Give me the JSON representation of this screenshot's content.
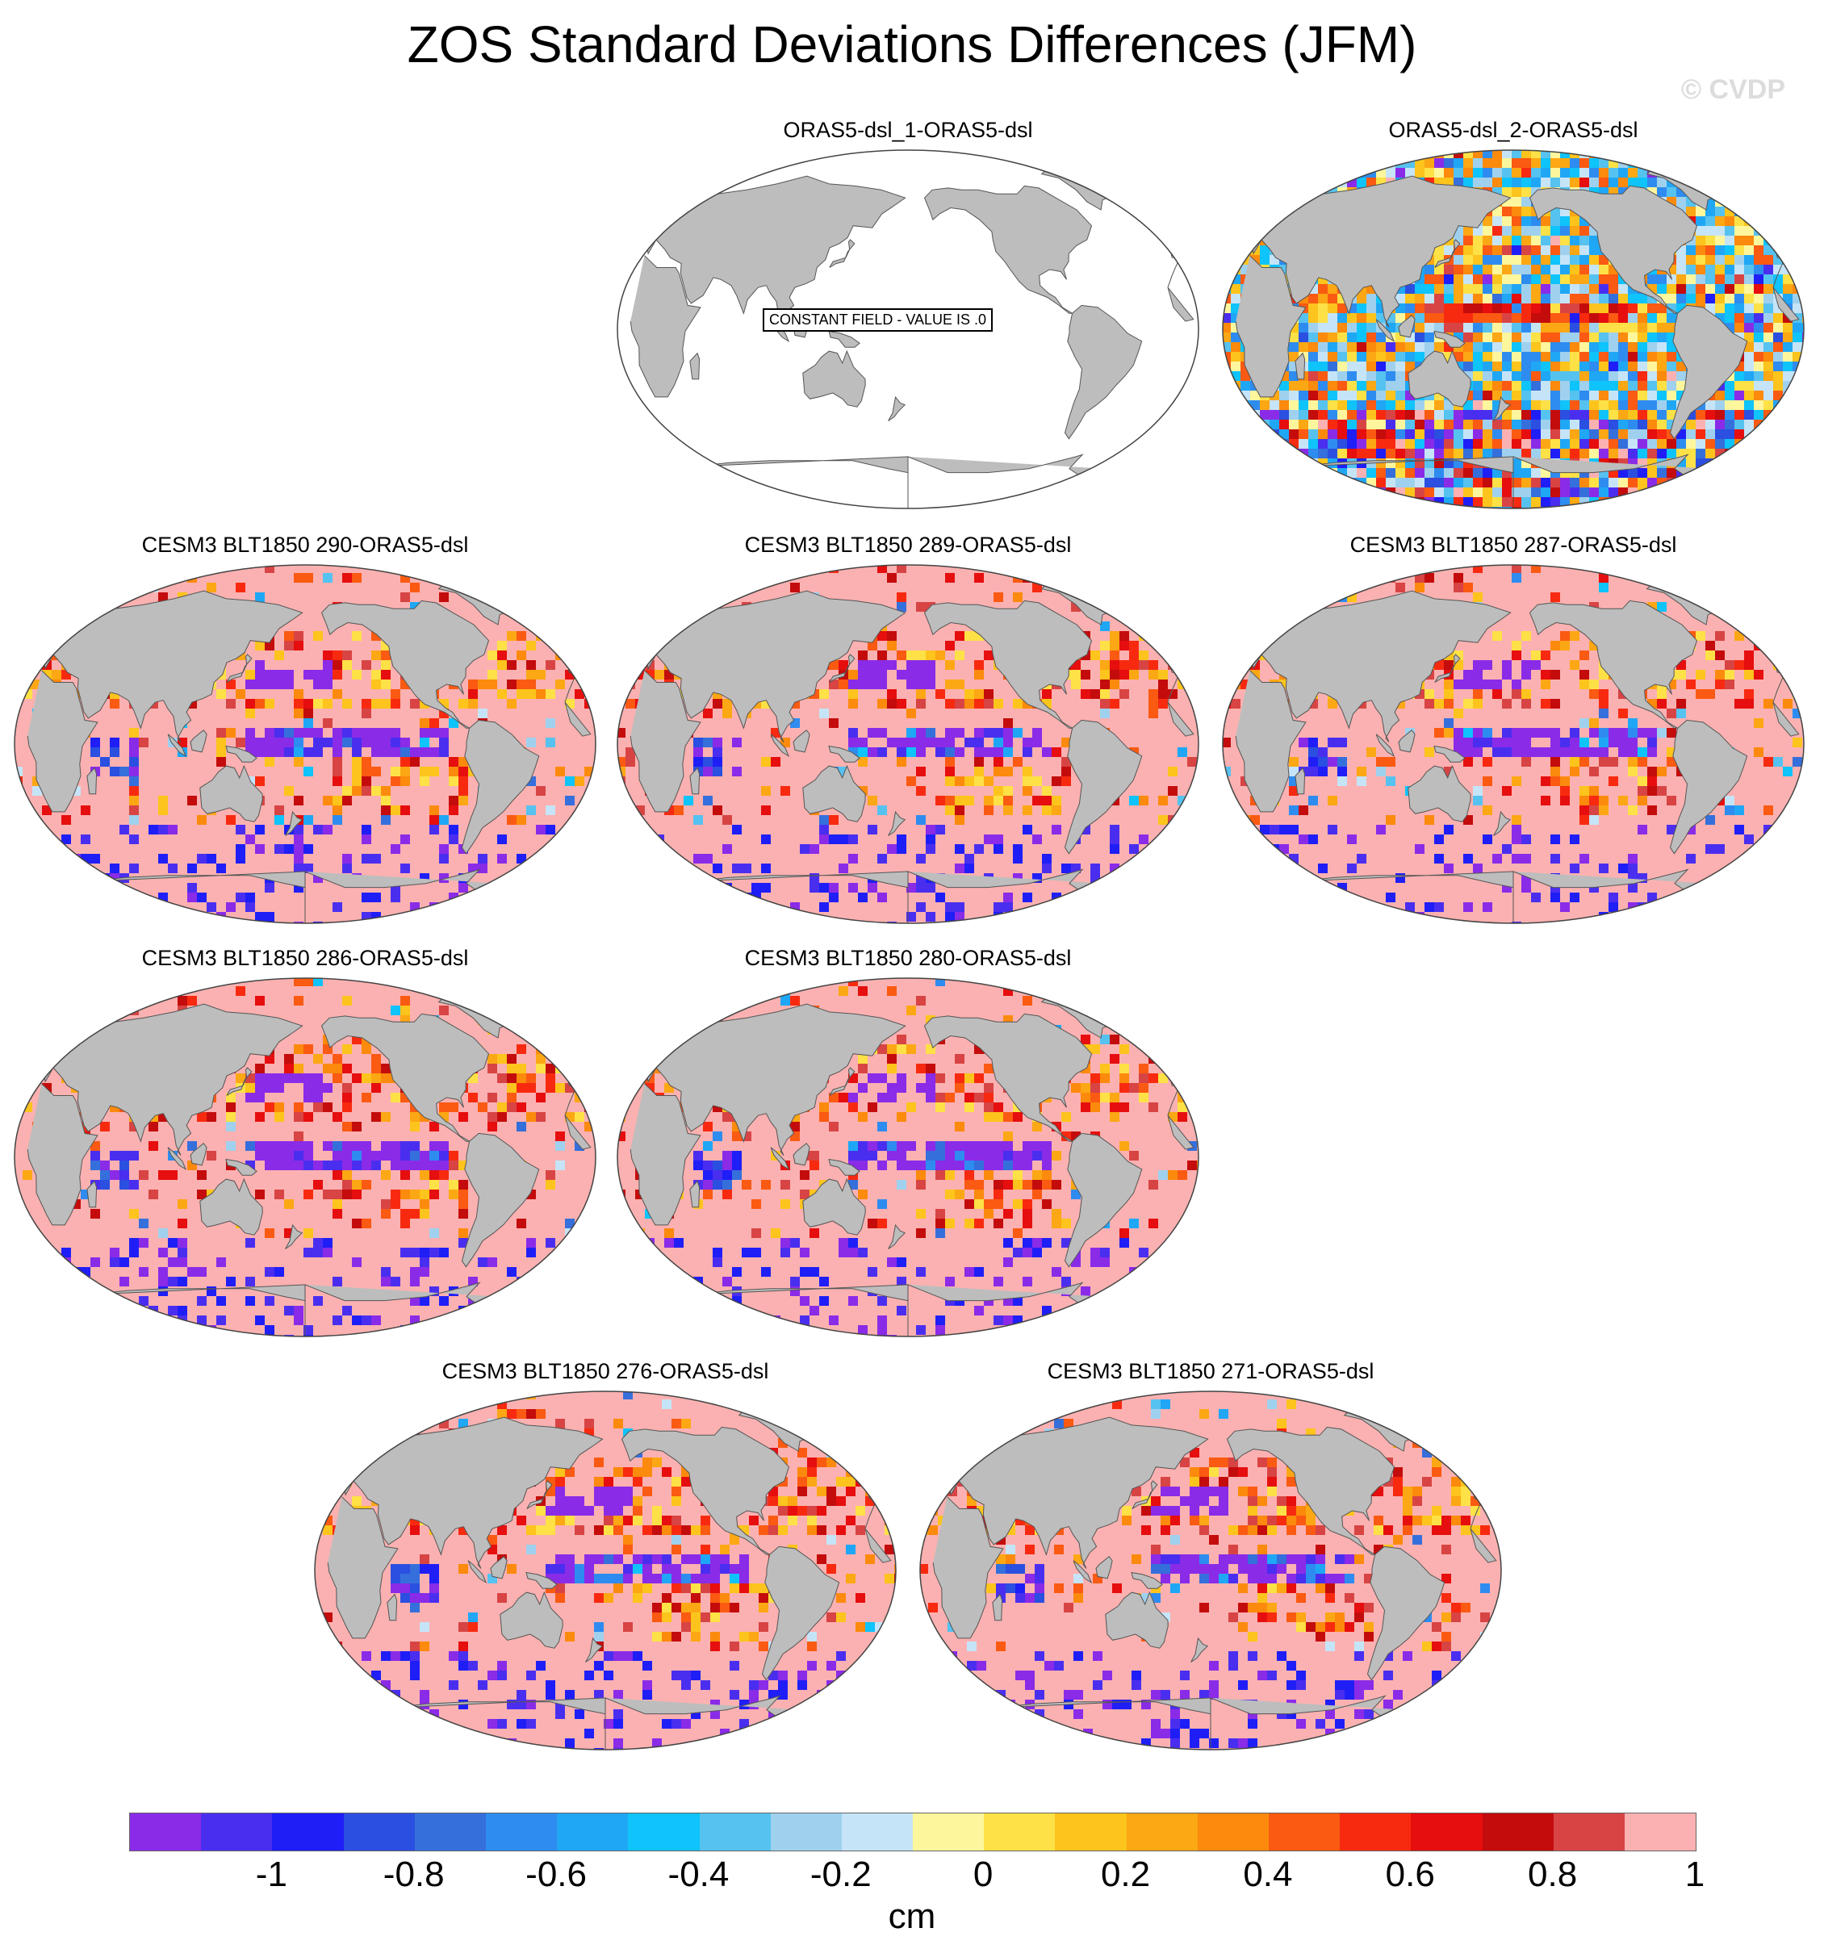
{
  "title": "ZOS Standard Deviations Differences (JFM)",
  "watermark": "© CVDP",
  "colors": {
    "land": "#bdbdbd",
    "ocean_blank": "#ffffff",
    "ocean_high": "#fbb1b1",
    "coast": "#555555"
  },
  "panels": [
    {
      "title": "ORAS5-dsl_1-ORAS5-dsl",
      "constant": true,
      "constant_label": "CONSTANT FIELD - VALUE IS .0"
    },
    {
      "title": "ORAS5-dsl_2-ORAS5-dsl",
      "constant": false,
      "style": "mixed"
    },
    {
      "title": "CESM3 BLT1850 290-ORAS5-dsl",
      "constant": false,
      "style": "model"
    },
    {
      "title": "CESM3 BLT1850 289-ORAS5-dsl",
      "constant": false,
      "style": "model"
    },
    {
      "title": "CESM3 BLT1850 287-ORAS5-dsl",
      "constant": false,
      "style": "model"
    },
    {
      "title": "CESM3 BLT1850 286-ORAS5-dsl",
      "constant": false,
      "style": "model"
    },
    {
      "title": "CESM3 BLT1850 280-ORAS5-dsl",
      "constant": false,
      "style": "model"
    },
    {
      "title": "CESM3 BLT1850 276-ORAS5-dsl",
      "constant": false,
      "style": "model"
    },
    {
      "title": "CESM3 BLT1850 271-ORAS5-dsl",
      "constant": false,
      "style": "model"
    }
  ],
  "colorbar": {
    "units": "cm",
    "colors": [
      "#8a2be8",
      "#4a2ef0",
      "#1f1ef7",
      "#2b4fe0",
      "#356fdc",
      "#2e8cf0",
      "#1fa7f6",
      "#0fc3fb",
      "#56c2f0",
      "#9fd1ee",
      "#c6e4f7",
      "#fdf69c",
      "#fde146",
      "#fcc41c",
      "#fca714",
      "#fc8a0c",
      "#fa5a12",
      "#f72a10",
      "#e60e0e",
      "#c40c0c",
      "#d84444",
      "#fbb1b1"
    ],
    "tick_labels": [
      "-1",
      "-0.8",
      "-0.6",
      "-0.4",
      "-0.2",
      "0",
      "0.2",
      "0.4",
      "0.6",
      "0.8",
      "1"
    ]
  }
}
